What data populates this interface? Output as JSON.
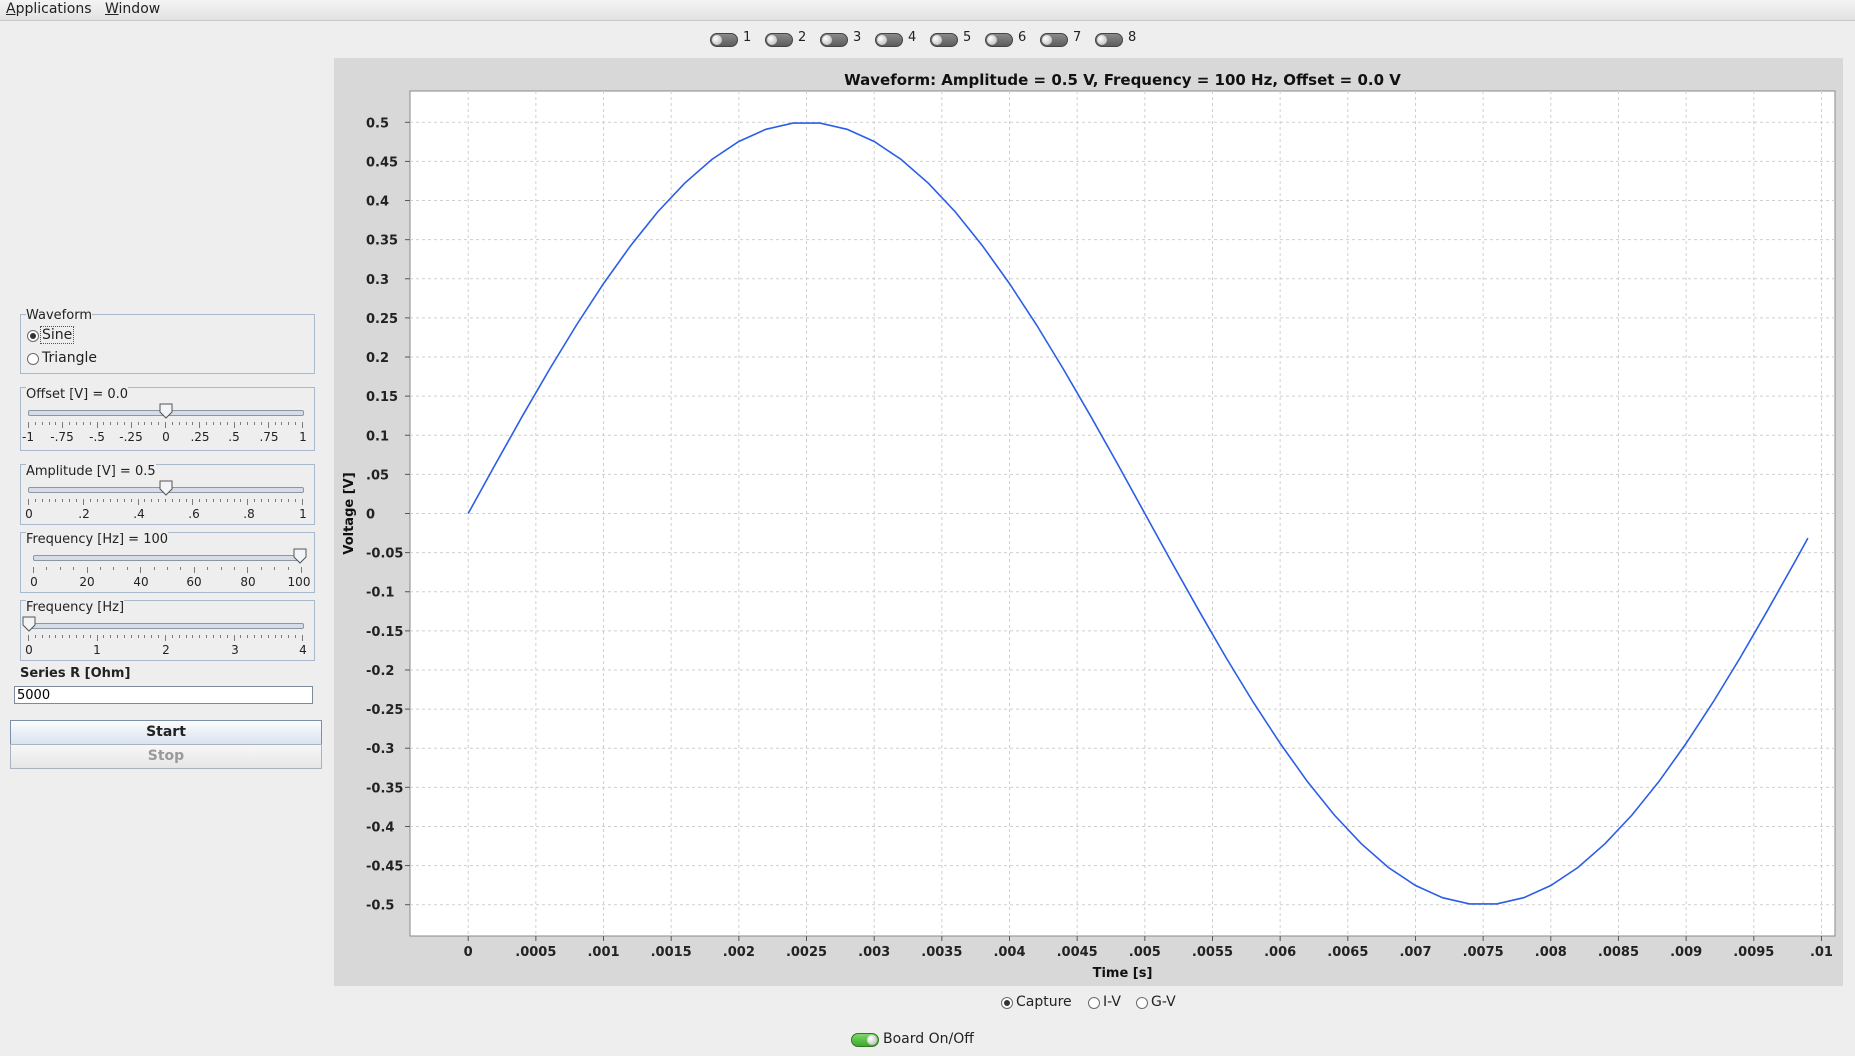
{
  "menu": {
    "items": [
      {
        "mnemonic": "A",
        "rest": "pplications"
      },
      {
        "mnemonic": "W",
        "rest": "indow"
      }
    ]
  },
  "channels": [
    "1",
    "2",
    "3",
    "4",
    "5",
    "6",
    "7",
    "8"
  ],
  "waveform_panel": {
    "title": "Waveform",
    "options": [
      "Sine",
      "Triangle"
    ],
    "selected": "Sine"
  },
  "offset_slider": {
    "title": "Offset [V] = 0.0",
    "value": 0.0,
    "min": -1,
    "max": 1,
    "labels": [
      "-1",
      "-.75",
      "-.5",
      "-.25",
      "0",
      ".25",
      ".5",
      ".75",
      "1"
    ]
  },
  "amplitude_slider": {
    "title": "Amplitude [V] = 0.5",
    "value": 0.5,
    "min": 0,
    "max": 1,
    "labels": [
      "0",
      ".2",
      ".4",
      ".6",
      ".8",
      "1"
    ]
  },
  "frequency_slider": {
    "title": "Frequency [Hz] = 100",
    "value": 100,
    "min": 0,
    "max": 100,
    "labels": [
      "0",
      "20",
      "40",
      "60",
      "80",
      "100"
    ]
  },
  "frequency_decade_slider": {
    "title": "Frequency [Hz]",
    "value": 0,
    "min": 0,
    "max": 4,
    "labels": [
      "0",
      "1",
      "2",
      "3",
      "4"
    ]
  },
  "series_r": {
    "label": "Series R [Ohm]",
    "value": "5000"
  },
  "buttons": {
    "start": "Start",
    "stop": "Stop"
  },
  "mode_options": [
    "Capture",
    "I-V",
    "G-V"
  ],
  "mode_selected": "Capture",
  "board_toggle": {
    "label": "Board On/Off",
    "on": true
  },
  "chart_data": {
    "type": "line",
    "title": "Waveform: Amplitude = 0.5 V, Frequency = 100 Hz, Offset = 0.0 V",
    "xlabel": "Time [s]",
    "ylabel": "Voltage [V]",
    "xlim": [
      -0.00043,
      0.0101
    ],
    "ylim": [
      -0.54,
      0.54
    ],
    "x_ticks": [
      0,
      0.0005,
      0.001,
      0.0015,
      0.002,
      0.0025,
      0.003,
      0.0035,
      0.004,
      0.0045,
      0.005,
      0.0055,
      0.006,
      0.0065,
      0.007,
      0.0075,
      0.008,
      0.0085,
      0.009,
      0.0095,
      0.01
    ],
    "x_tick_labels": [
      "0",
      ".0005",
      ".001",
      ".0015",
      ".002",
      ".0025",
      ".003",
      ".0035",
      ".004",
      ".0045",
      ".005",
      ".0055",
      ".006",
      ".0065",
      ".007",
      ".0075",
      ".008",
      ".0085",
      ".009",
      ".0095",
      ".01"
    ],
    "y_ticks": [
      0.5,
      0.45,
      0.4,
      0.35,
      0.3,
      0.25,
      0.2,
      0.15,
      0.1,
      0.05,
      0,
      -0.05,
      -0.1,
      -0.15,
      -0.2,
      -0.25,
      -0.3,
      -0.35,
      -0.4,
      -0.45,
      -0.5
    ],
    "y_tick_labels": [
      "0.5",
      "0.45",
      "0.4",
      "0.35",
      "0.3",
      "0.25",
      "0.2",
      "0.15",
      "0.1",
      ".05",
      "0",
      "-0.05",
      "-0.1",
      "-0.15",
      "-0.2",
      "-0.25",
      "-0.3",
      "-0.35",
      "-0.4",
      "-0.45",
      "-0.5"
    ],
    "grid": true,
    "series": [
      {
        "color": "#2b5ee6",
        "x": [
          0,
          0.0002,
          0.0004,
          0.0006,
          0.0008,
          0.001,
          0.0012,
          0.0014,
          0.0016,
          0.0018,
          0.002,
          0.0022,
          0.0024,
          0.0026,
          0.0028,
          0.003,
          0.0032,
          0.0034,
          0.0036,
          0.0038,
          0.004,
          0.0042,
          0.0044,
          0.0046,
          0.0048,
          0.005,
          0.0052,
          0.0054,
          0.0056,
          0.0058,
          0.006,
          0.0062,
          0.0064,
          0.0066,
          0.0068,
          0.007,
          0.0072,
          0.0074,
          0.0076,
          0.0078,
          0.008,
          0.0082,
          0.0084,
          0.0086,
          0.0088,
          0.009,
          0.0092,
          0.0094,
          0.0096,
          0.0098,
          0.0099
        ],
        "y": [
          0,
          0.0627,
          0.1243,
          0.1841,
          0.2409,
          0.2939,
          0.3423,
          0.3853,
          0.4222,
          0.4524,
          0.4755,
          0.4911,
          0.499,
          0.499,
          0.4911,
          0.4755,
          0.4524,
          0.4222,
          0.3853,
          0.3423,
          0.2939,
          0.2409,
          0.1841,
          0.1243,
          0.0627,
          0,
          -0.0627,
          -0.1243,
          -0.1841,
          -0.2409,
          -0.2939,
          -0.3423,
          -0.3853,
          -0.4222,
          -0.4524,
          -0.4755,
          -0.4911,
          -0.499,
          -0.499,
          -0.4911,
          -0.4755,
          -0.4524,
          -0.4222,
          -0.3853,
          -0.3423,
          -0.2939,
          -0.2409,
          -0.1841,
          -0.1243,
          -0.0627,
          -0.0314
        ]
      }
    ]
  }
}
